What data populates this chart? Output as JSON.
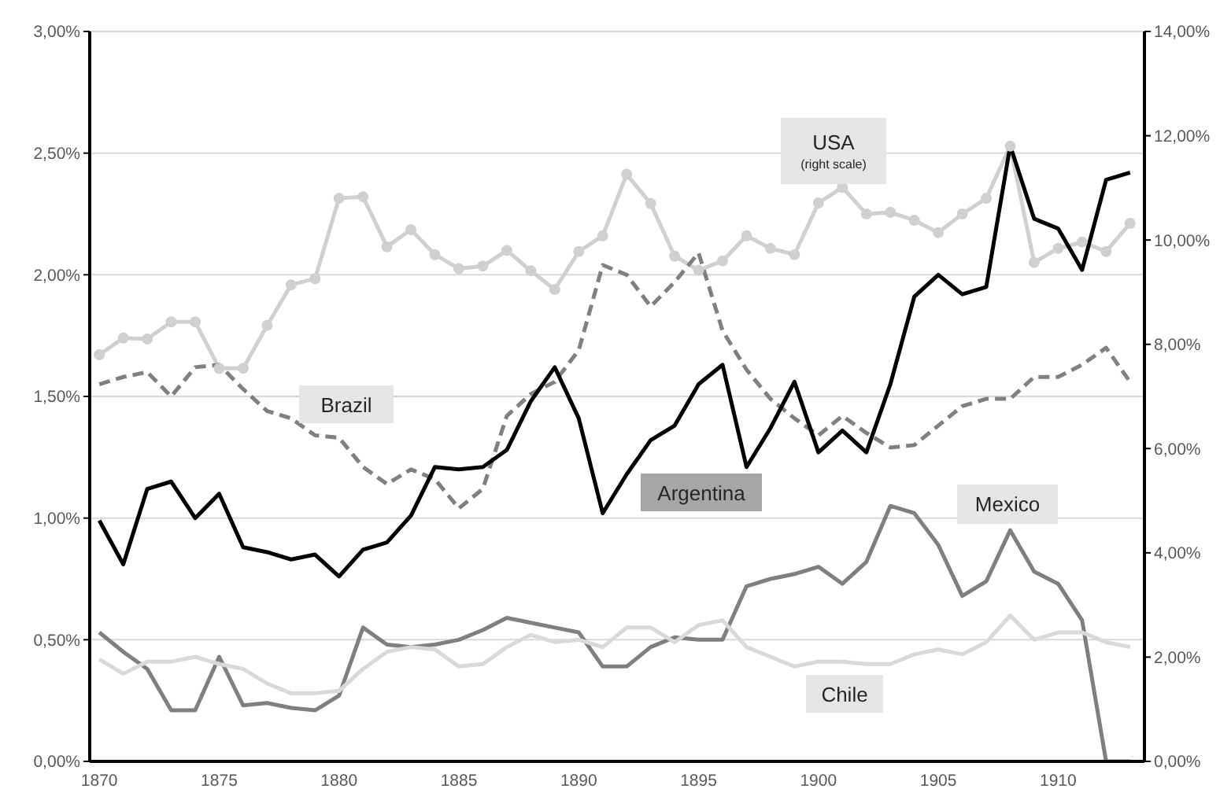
{
  "chart_data": {
    "type": "line",
    "x": [
      1870,
      1871,
      1872,
      1873,
      1874,
      1875,
      1876,
      1877,
      1878,
      1879,
      1880,
      1881,
      1882,
      1883,
      1884,
      1885,
      1886,
      1887,
      1888,
      1889,
      1890,
      1891,
      1892,
      1893,
      1894,
      1895,
      1896,
      1897,
      1898,
      1899,
      1900,
      1901,
      1902,
      1903,
      1904,
      1905,
      1906,
      1907,
      1908,
      1909,
      1910,
      1911,
      1912,
      1913
    ],
    "xlim": [
      1869.6,
      1913.6
    ],
    "xticks": [
      1870,
      1875,
      1880,
      1885,
      1890,
      1895,
      1900,
      1905,
      1910
    ],
    "ylim": [
      0,
      3
    ],
    "yticks": [
      {
        "value": 0,
        "label": "0,00%"
      },
      {
        "value": 0.5,
        "label": "0,50%"
      },
      {
        "value": 1,
        "label": "1,00%"
      },
      {
        "value": 1.5,
        "label": "1,50%"
      },
      {
        "value": 2,
        "label": "2,00%"
      },
      {
        "value": 2.5,
        "label": "2,50%"
      },
      {
        "value": 3,
        "label": "3,00%"
      }
    ],
    "y2lim": [
      0,
      14
    ],
    "y2ticks": [
      {
        "value": 0,
        "label": "0,00%"
      },
      {
        "value": 2,
        "label": "2,00%"
      },
      {
        "value": 4,
        "label": "4,00%"
      },
      {
        "value": 6,
        "label": "6,00%"
      },
      {
        "value": 8,
        "label": "8,00%"
      },
      {
        "value": 10,
        "label": "10,00%"
      },
      {
        "value": 12,
        "label": "12,00%"
      },
      {
        "value": 14,
        "label": "14,00%"
      }
    ],
    "grid": "y",
    "annotations": [
      "(right scale)"
    ],
    "series": [
      {
        "name": "USA",
        "color": "#d0d0d0",
        "axis": "y2",
        "marker": "circle",
        "line_style": "solid",
        "values": [
          7.8,
          8.12,
          8.1,
          8.43,
          8.43,
          7.54,
          7.54,
          8.36,
          9.14,
          9.26,
          10.8,
          10.83,
          9.87,
          10.2,
          9.72,
          9.45,
          9.5,
          9.8,
          9.41,
          9.05,
          9.78,
          10.08,
          11.26,
          10.7,
          9.69,
          9.42,
          9.6,
          10.08,
          9.84,
          9.72,
          10.71,
          11.01,
          10.5,
          10.53,
          10.38,
          10.14,
          10.5,
          10.8,
          11.8,
          9.57,
          9.84,
          9.96,
          9.78,
          10.32
        ]
      },
      {
        "name": "Brazil",
        "color": "#808080",
        "line_style": "dashed",
        "values": [
          1.55,
          1.58,
          1.6,
          1.5,
          1.62,
          1.63,
          1.53,
          1.44,
          1.41,
          1.34,
          1.33,
          1.21,
          1.14,
          1.2,
          1.16,
          1.04,
          1.12,
          1.42,
          1.51,
          1.56,
          1.69,
          2.04,
          2.0,
          1.87,
          1.97,
          2.09,
          1.77,
          1.61,
          1.49,
          1.41,
          1.34,
          1.42,
          1.35,
          1.29,
          1.3,
          1.38,
          1.46,
          1.49,
          1.49,
          1.58,
          1.58,
          1.63,
          1.7,
          1.56
        ]
      },
      {
        "name": "Argentina",
        "color": "#000000",
        "line_style": "solid",
        "values": [
          0.99,
          0.81,
          1.12,
          1.15,
          1.0,
          1.1,
          0.88,
          0.86,
          0.83,
          0.85,
          0.76,
          0.87,
          0.9,
          1.01,
          1.21,
          1.2,
          1.21,
          1.28,
          1.48,
          1.62,
          1.41,
          1.02,
          1.18,
          1.32,
          1.38,
          1.55,
          1.63,
          1.21,
          1.37,
          1.56,
          1.27,
          1.36,
          1.27,
          1.55,
          1.91,
          2.0,
          1.92,
          1.95,
          2.53,
          2.23,
          2.19,
          2.02,
          2.39,
          2.42
        ]
      },
      {
        "name": "Mexico",
        "color": "#7f7f7f",
        "line_style": "solid",
        "values": [
          0.53,
          0.45,
          0.38,
          0.21,
          0.21,
          0.43,
          0.23,
          0.24,
          0.22,
          0.21,
          0.27,
          0.55,
          0.48,
          0.47,
          0.48,
          0.5,
          0.54,
          0.59,
          0.57,
          0.55,
          0.53,
          0.39,
          0.39,
          0.47,
          0.51,
          0.5,
          0.5,
          0.72,
          0.75,
          0.77,
          0.8,
          0.73,
          0.82,
          1.05,
          1.02,
          0.89,
          0.68,
          0.74,
          0.95,
          0.78,
          0.73,
          0.58,
          0,
          0
        ]
      },
      {
        "name": "Chile",
        "color": "#d9d9d9",
        "line_style": "solid",
        "values": [
          0.42,
          0.36,
          0.41,
          0.41,
          0.43,
          0.4,
          0.38,
          0.32,
          0.28,
          0.28,
          0.29,
          0.38,
          0.45,
          0.47,
          0.46,
          0.39,
          0.4,
          0.47,
          0.52,
          0.49,
          0.5,
          0.47,
          0.55,
          0.55,
          0.49,
          0.56,
          0.58,
          0.47,
          0.43,
          0.39,
          0.41,
          0.41,
          0.4,
          0.4,
          0.44,
          0.46,
          0.44,
          0.49,
          0.6,
          0.5,
          0.53,
          0.53,
          0.49,
          0.47
        ]
      }
    ]
  }
}
